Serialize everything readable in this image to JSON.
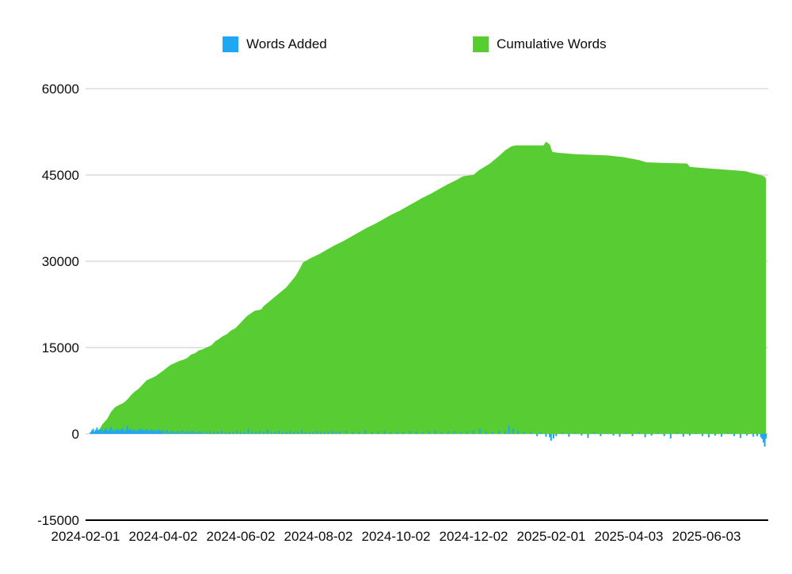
{
  "legend": [
    {
      "label": "Words Added",
      "color": "#1fa8f2"
    },
    {
      "label": "Cumulative Words",
      "color": "#58cd33"
    }
  ],
  "axes": {
    "y_ticks": [
      {
        "label": "60000",
        "value": 60000
      },
      {
        "label": "45000",
        "value": 45000
      },
      {
        "label": "30000",
        "value": 30000
      },
      {
        "label": "15000",
        "value": 15000
      },
      {
        "label": "0",
        "value": 0
      },
      {
        "label": "-15000",
        "value": -15000
      }
    ],
    "x_ticks": [
      {
        "label": "2024-02-01",
        "day": 0
      },
      {
        "label": "2024-04-02",
        "day": 61
      },
      {
        "label": "2024-06-02",
        "day": 122
      },
      {
        "label": "2024-08-02",
        "day": 183
      },
      {
        "label": "2024-10-02",
        "day": 244
      },
      {
        "label": "2024-12-02",
        "day": 305
      },
      {
        "label": "2025-02-01",
        "day": 366
      },
      {
        "label": "2025-04-03",
        "day": 427
      },
      {
        "label": "2025-06-03",
        "day": 488
      }
    ]
  },
  "chart_data": {
    "type": "area",
    "x_axis_type": "date",
    "x_start_date": "2024-02-01",
    "x_unit": "days_since_start",
    "ylim": [
      -15000,
      60000
    ],
    "grid": true,
    "legend_position": "top",
    "series": [
      {
        "name": "Words Added",
        "type": "bar",
        "color": "#1fa8f2",
        "points": [
          [
            4,
            300
          ],
          [
            5,
            600
          ],
          [
            6,
            900
          ],
          [
            7,
            400
          ],
          [
            8,
            700
          ],
          [
            9,
            1100
          ],
          [
            10,
            500
          ],
          [
            11,
            800
          ],
          [
            12,
            600
          ],
          [
            13,
            900
          ],
          [
            14,
            400
          ],
          [
            15,
            700
          ],
          [
            16,
            1000
          ],
          [
            17,
            600
          ],
          [
            18,
            500
          ],
          [
            19,
            800
          ],
          [
            20,
            1200
          ],
          [
            21,
            500
          ],
          [
            22,
            700
          ],
          [
            23,
            400
          ],
          [
            24,
            900
          ],
          [
            25,
            600
          ],
          [
            26,
            800
          ],
          [
            27,
            500
          ],
          [
            28,
            700
          ],
          [
            29,
            1000
          ],
          [
            30,
            600
          ],
          [
            31,
            400
          ],
          [
            32,
            800
          ],
          [
            33,
            1400
          ],
          [
            34,
            700
          ],
          [
            35,
            900
          ],
          [
            36,
            500
          ],
          [
            37,
            600
          ],
          [
            38,
            800
          ],
          [
            39,
            400
          ],
          [
            40,
            700
          ],
          [
            41,
            500
          ],
          [
            42,
            900
          ],
          [
            43,
            600
          ],
          [
            44,
            800
          ],
          [
            45,
            700
          ],
          [
            46,
            500
          ],
          [
            47,
            600
          ],
          [
            48,
            900
          ],
          [
            49,
            400
          ],
          [
            50,
            700
          ],
          [
            51,
            500
          ],
          [
            52,
            800
          ],
          [
            53,
            600
          ],
          [
            54,
            400
          ],
          [
            55,
            700
          ],
          [
            56,
            500
          ],
          [
            57,
            600
          ],
          [
            58,
            800
          ],
          [
            59,
            400
          ],
          [
            60,
            600
          ],
          [
            62,
            500
          ],
          [
            64,
            700
          ],
          [
            66,
            400
          ],
          [
            68,
            600
          ],
          [
            70,
            300
          ],
          [
            72,
            500
          ],
          [
            74,
            400
          ],
          [
            76,
            600
          ],
          [
            78,
            300
          ],
          [
            80,
            500
          ],
          [
            82,
            400
          ],
          [
            84,
            600
          ],
          [
            86,
            300
          ],
          [
            88,
            400
          ],
          [
            90,
            500
          ],
          [
            92,
            300
          ],
          [
            95,
            400
          ],
          [
            98,
            500
          ],
          [
            101,
            300
          ],
          [
            104,
            400
          ],
          [
            107,
            600
          ],
          [
            110,
            300
          ],
          [
            113,
            400
          ],
          [
            116,
            300
          ],
          [
            119,
            500
          ],
          [
            122,
            400
          ],
          [
            125,
            300
          ],
          [
            128,
            900
          ],
          [
            131,
            400
          ],
          [
            134,
            300
          ],
          [
            137,
            500
          ],
          [
            140,
            400
          ],
          [
            143,
            700
          ],
          [
            146,
            300
          ],
          [
            149,
            400
          ],
          [
            152,
            600
          ],
          [
            155,
            300
          ],
          [
            158,
            400
          ],
          [
            161,
            500
          ],
          [
            164,
            300
          ],
          [
            167,
            400
          ],
          [
            170,
            600
          ],
          [
            173,
            300
          ],
          [
            176,
            400
          ],
          [
            179,
            300
          ],
          [
            182,
            500
          ],
          [
            185,
            400
          ],
          [
            188,
            300
          ],
          [
            191,
            400
          ],
          [
            194,
            600
          ],
          [
            197,
            300
          ],
          [
            200,
            400
          ],
          [
            205,
            500
          ],
          [
            210,
            300
          ],
          [
            215,
            400
          ],
          [
            220,
            600
          ],
          [
            225,
            300
          ],
          [
            230,
            400
          ],
          [
            235,
            500
          ],
          [
            240,
            300
          ],
          [
            245,
            400
          ],
          [
            250,
            300
          ],
          [
            255,
            500
          ],
          [
            260,
            400
          ],
          [
            265,
            300
          ],
          [
            270,
            400
          ],
          [
            275,
            600
          ],
          [
            280,
            300
          ],
          [
            285,
            400
          ],
          [
            290,
            500
          ],
          [
            295,
            300
          ],
          [
            300,
            400
          ],
          [
            305,
            600
          ],
          [
            310,
            900
          ],
          [
            315,
            400
          ],
          [
            320,
            300
          ],
          [
            325,
            500
          ],
          [
            330,
            400
          ],
          [
            333,
            1500
          ],
          [
            336,
            900
          ],
          [
            340,
            500
          ],
          [
            345,
            300
          ],
          [
            350,
            400
          ],
          [
            355,
            -400
          ],
          [
            358,
            300
          ],
          [
            362,
            -500
          ],
          [
            365,
            -600
          ],
          [
            366,
            -1200
          ],
          [
            368,
            -800
          ],
          [
            370,
            -400
          ],
          [
            375,
            300
          ],
          [
            380,
            -500
          ],
          [
            385,
            200
          ],
          [
            390,
            -300
          ],
          [
            395,
            -700
          ],
          [
            400,
            300
          ],
          [
            405,
            -400
          ],
          [
            410,
            200
          ],
          [
            415,
            -300
          ],
          [
            420,
            -500
          ],
          [
            425,
            200
          ],
          [
            430,
            -400
          ],
          [
            435,
            300
          ],
          [
            440,
            -600
          ],
          [
            445,
            -300
          ],
          [
            450,
            200
          ],
          [
            455,
            -400
          ],
          [
            460,
            -800
          ],
          [
            465,
            300
          ],
          [
            470,
            -500
          ],
          [
            475,
            -300
          ],
          [
            480,
            200
          ],
          [
            485,
            -400
          ],
          [
            490,
            -600
          ],
          [
            495,
            -300
          ],
          [
            500,
            -500
          ],
          [
            505,
            200
          ],
          [
            510,
            -400
          ],
          [
            515,
            -700
          ],
          [
            520,
            -300
          ],
          [
            525,
            -500
          ],
          [
            528,
            -400
          ],
          [
            531,
            -600
          ],
          [
            532,
            -900
          ],
          [
            533,
            -1500
          ],
          [
            534,
            -2200
          ],
          [
            535,
            -800
          ]
        ]
      },
      {
        "name": "Cumulative Words",
        "type": "area",
        "color": "#58cd33",
        "points": [
          [
            4,
            0
          ],
          [
            6,
            200
          ],
          [
            8,
            500
          ],
          [
            11,
            800
          ],
          [
            13,
            1600
          ],
          [
            15,
            2100
          ],
          [
            17,
            2600
          ],
          [
            20,
            3800
          ],
          [
            23,
            4600
          ],
          [
            26,
            5000
          ],
          [
            30,
            5400
          ],
          [
            33,
            6000
          ],
          [
            36,
            6800
          ],
          [
            39,
            7400
          ],
          [
            42,
            7900
          ],
          [
            45,
            8600
          ],
          [
            48,
            9300
          ],
          [
            52,
            9700
          ],
          [
            55,
            10000
          ],
          [
            58,
            10500
          ],
          [
            61,
            11000
          ],
          [
            64,
            11500
          ],
          [
            67,
            12000
          ],
          [
            70,
            12300
          ],
          [
            74,
            12700
          ],
          [
            77,
            12900
          ],
          [
            80,
            13200
          ],
          [
            83,
            13800
          ],
          [
            86,
            14000
          ],
          [
            89,
            14500
          ],
          [
            92,
            14700
          ],
          [
            96,
            15100
          ],
          [
            99,
            15400
          ],
          [
            102,
            16100
          ],
          [
            105,
            16500
          ],
          [
            108,
            17000
          ],
          [
            111,
            17300
          ],
          [
            114,
            17900
          ],
          [
            118,
            18400
          ],
          [
            121,
            19100
          ],
          [
            124,
            19800
          ],
          [
            127,
            20500
          ],
          [
            133,
            21400
          ],
          [
            138,
            21600
          ],
          [
            140,
            22200
          ],
          [
            146,
            23300
          ],
          [
            152,
            24400
          ],
          [
            158,
            25500
          ],
          [
            165,
            27400
          ],
          [
            168,
            28500
          ],
          [
            171,
            29800
          ],
          [
            177,
            30550
          ],
          [
            184,
            31300
          ],
          [
            190,
            32050
          ],
          [
            196,
            32800
          ],
          [
            203,
            33550
          ],
          [
            209,
            34300
          ],
          [
            215,
            35050
          ],
          [
            221,
            35800
          ],
          [
            228,
            36550
          ],
          [
            234,
            37300
          ],
          [
            240,
            38050
          ],
          [
            247,
            38800
          ],
          [
            253,
            39550
          ],
          [
            259,
            40300
          ],
          [
            265,
            41050
          ],
          [
            272,
            41800
          ],
          [
            278,
            42550
          ],
          [
            284,
            43300
          ],
          [
            291,
            44050
          ],
          [
            297,
            44800
          ],
          [
            305,
            45000
          ],
          [
            309,
            45800
          ],
          [
            318,
            47000
          ],
          [
            325,
            48300
          ],
          [
            330,
            49300
          ],
          [
            335,
            50000
          ],
          [
            338,
            50150
          ],
          [
            360,
            50150
          ],
          [
            362,
            50800
          ],
          [
            365,
            50300
          ],
          [
            367,
            49000
          ],
          [
            372,
            48850
          ],
          [
            385,
            48600
          ],
          [
            410,
            48400
          ],
          [
            423,
            48100
          ],
          [
            435,
            47600
          ],
          [
            441,
            47200
          ],
          [
            454,
            47100
          ],
          [
            473,
            47000
          ],
          [
            475,
            46400
          ],
          [
            492,
            46100
          ],
          [
            511,
            45800
          ],
          [
            519,
            45650
          ],
          [
            523,
            45400
          ],
          [
            528,
            45150
          ],
          [
            532,
            44900
          ],
          [
            534,
            44700
          ],
          [
            535,
            44300
          ]
        ]
      }
    ]
  }
}
